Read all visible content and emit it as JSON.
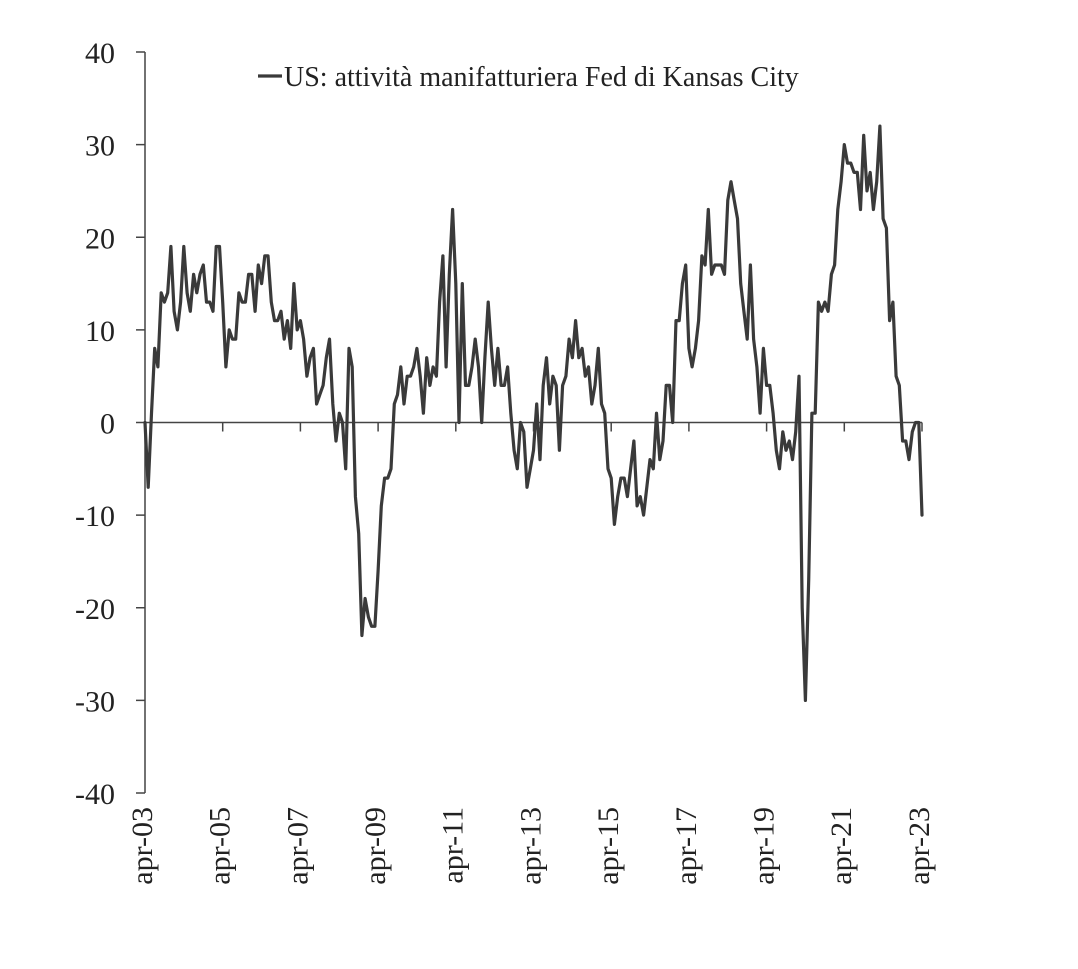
{
  "chart_data": {
    "type": "line",
    "title": "",
    "xlabel": "",
    "ylabel": "",
    "ylim": [
      -40,
      40
    ],
    "yticks": [
      40,
      30,
      20,
      10,
      0,
      -10,
      -20,
      -30,
      -40
    ],
    "ytick_labels": [
      "40",
      "30",
      "20",
      "10",
      "0",
      "-10",
      "-20",
      "-30",
      "-40"
    ],
    "x_start": "2003-04",
    "x_end": "2023-04",
    "xtick_labels": [
      "apr-03",
      "apr-05",
      "apr-07",
      "apr-09",
      "apr-11",
      "apr-13",
      "apr-15",
      "apr-17",
      "apr-19",
      "apr-21",
      "apr-23"
    ],
    "grid": false,
    "legend_position": "top",
    "colors": {
      "line": "#3a3a3a",
      "axis": "#444444"
    },
    "series": [
      {
        "name": "US: attività manifatturiera Fed di Kansas City",
        "x": [
          "2003-04",
          "2003-05",
          "2003-06",
          "2003-07",
          "2003-08",
          "2003-09",
          "2003-10",
          "2003-11",
          "2003-12",
          "2004-01",
          "2004-02",
          "2004-03",
          "2004-04",
          "2004-05",
          "2004-06",
          "2004-07",
          "2004-08",
          "2004-09",
          "2004-10",
          "2004-11",
          "2004-12",
          "2005-01",
          "2005-02",
          "2005-03",
          "2005-04",
          "2005-05",
          "2005-06",
          "2005-07",
          "2005-08",
          "2005-09",
          "2005-10",
          "2005-11",
          "2005-12",
          "2006-01",
          "2006-02",
          "2006-03",
          "2006-04",
          "2006-05",
          "2006-06",
          "2006-07",
          "2006-08",
          "2006-09",
          "2006-10",
          "2006-11",
          "2006-12",
          "2007-01",
          "2007-02",
          "2007-03",
          "2007-04",
          "2007-05",
          "2007-06",
          "2007-07",
          "2007-08",
          "2007-09",
          "2007-10",
          "2007-11",
          "2007-12",
          "2008-01",
          "2008-02",
          "2008-03",
          "2008-04",
          "2008-05",
          "2008-06",
          "2008-07",
          "2008-08",
          "2008-09",
          "2008-10",
          "2008-11",
          "2008-12",
          "2009-01",
          "2009-02",
          "2009-03",
          "2009-04",
          "2009-05",
          "2009-06",
          "2009-07",
          "2009-08",
          "2009-09",
          "2009-10",
          "2009-11",
          "2009-12",
          "2010-01",
          "2010-02",
          "2010-03",
          "2010-04",
          "2010-05",
          "2010-06",
          "2010-07",
          "2010-08",
          "2010-09",
          "2010-10",
          "2010-11",
          "2010-12",
          "2011-01",
          "2011-02",
          "2011-03",
          "2011-04",
          "2011-05",
          "2011-06",
          "2011-07",
          "2011-08",
          "2011-09",
          "2011-10",
          "2011-11",
          "2011-12",
          "2012-01",
          "2012-02",
          "2012-03",
          "2012-04",
          "2012-05",
          "2012-06",
          "2012-07",
          "2012-08",
          "2012-09",
          "2012-10",
          "2012-11",
          "2012-12",
          "2013-01",
          "2013-02",
          "2013-03",
          "2013-04",
          "2013-05",
          "2013-06",
          "2013-07",
          "2013-08",
          "2013-09",
          "2013-10",
          "2013-11",
          "2013-12",
          "2014-01",
          "2014-02",
          "2014-03",
          "2014-04",
          "2014-05",
          "2014-06",
          "2014-07",
          "2014-08",
          "2014-09",
          "2014-10",
          "2014-11",
          "2014-12",
          "2015-01",
          "2015-02",
          "2015-03",
          "2015-04",
          "2015-05",
          "2015-06",
          "2015-07",
          "2015-08",
          "2015-09",
          "2015-10",
          "2015-11",
          "2015-12",
          "2016-01",
          "2016-02",
          "2016-03",
          "2016-04",
          "2016-05",
          "2016-06",
          "2016-07",
          "2016-08",
          "2016-09",
          "2016-10",
          "2016-11",
          "2016-12",
          "2017-01",
          "2017-02",
          "2017-03",
          "2017-04",
          "2017-05",
          "2017-06",
          "2017-07",
          "2017-08",
          "2017-09",
          "2017-10",
          "2017-11",
          "2017-12",
          "2018-01",
          "2018-02",
          "2018-03",
          "2018-04",
          "2018-05",
          "2018-06",
          "2018-07",
          "2018-08",
          "2018-09",
          "2018-10",
          "2018-11",
          "2018-12",
          "2019-01",
          "2019-02",
          "2019-03",
          "2019-04",
          "2019-05",
          "2019-06",
          "2019-07",
          "2019-08",
          "2019-09",
          "2019-10",
          "2019-11",
          "2019-12",
          "2020-01",
          "2020-02",
          "2020-03",
          "2020-04",
          "2020-05",
          "2020-06",
          "2020-07",
          "2020-08",
          "2020-09",
          "2020-10",
          "2020-11",
          "2020-12",
          "2021-01",
          "2021-02",
          "2021-03",
          "2021-04",
          "2021-05",
          "2021-06",
          "2021-07",
          "2021-08",
          "2021-09",
          "2021-10",
          "2021-11",
          "2021-12",
          "2022-01",
          "2022-02",
          "2022-03",
          "2022-04",
          "2022-05",
          "2022-06",
          "2022-07",
          "2022-08",
          "2022-09",
          "2022-10",
          "2022-11",
          "2022-12",
          "2023-01",
          "2023-02",
          "2023-03",
          "2023-04"
        ],
        "values": [
          0,
          -7,
          1,
          8,
          6,
          14,
          13,
          14,
          19,
          12,
          10,
          13,
          19,
          14,
          12,
          16,
          14,
          16,
          17,
          13,
          13,
          12,
          19,
          19,
          13,
          6,
          10,
          9,
          9,
          14,
          13,
          13,
          16,
          16,
          12,
          17,
          15,
          18,
          18,
          13,
          11,
          11,
          12,
          9,
          11,
          8,
          15,
          10,
          11,
          9,
          5,
          7,
          8,
          2,
          3,
          4,
          7,
          9,
          2,
          -2,
          1,
          0,
          -5,
          8,
          6,
          -8,
          -12,
          -23,
          -19,
          -21,
          -22,
          -22,
          -16,
          -9,
          -6,
          -6,
          -5,
          2,
          3,
          6,
          2,
          5,
          5,
          6,
          8,
          5,
          1,
          7,
          4,
          6,
          5,
          13,
          18,
          6,
          16,
          23,
          15,
          0,
          15,
          4,
          4,
          6,
          9,
          6,
          0,
          7,
          13,
          8,
          4,
          8,
          4,
          4,
          6,
          1,
          -3,
          -5,
          0,
          -1,
          -7,
          -5,
          -3,
          2,
          -4,
          4,
          7,
          2,
          5,
          4,
          -3,
          4,
          5,
          9,
          7,
          11,
          7,
          8,
          5,
          6,
          2,
          4,
          8,
          2,
          1,
          -5,
          -6,
          -11,
          -8,
          -6,
          -6,
          -8,
          -5,
          -2,
          -9,
          -8,
          -10,
          -7,
          -4,
          -5,
          1,
          -4,
          -2,
          4,
          4,
          0,
          11,
          11,
          15,
          17,
          8,
          6,
          8,
          11,
          18,
          17,
          23,
          16,
          17,
          17,
          17,
          16,
          24,
          26,
          24,
          22,
          15,
          12,
          9,
          17,
          9,
          6,
          1,
          8,
          4,
          4,
          1,
          -3,
          -5,
          -1,
          -3,
          -2,
          -4,
          -1,
          5,
          -20,
          -30,
          -17,
          1,
          1,
          13,
          12,
          13,
          12,
          16,
          17,
          23,
          26,
          30,
          28,
          28,
          27,
          27,
          23,
          31,
          25,
          27,
          23,
          26,
          32,
          22,
          21,
          11,
          13,
          5,
          4,
          -2,
          -2,
          -4,
          -1,
          0,
          0,
          -10
        ]
      }
    ]
  }
}
